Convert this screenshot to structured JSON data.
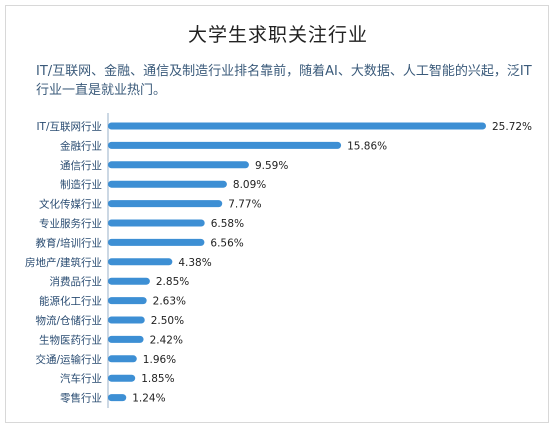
{
  "chart_data": {
    "type": "bar",
    "orientation": "horizontal",
    "title": "大学生求职关注行业",
    "subtitle": "IT/互联网、金融、通信及制造行业排名靠前，随着AI、大数据、人工智能的兴起，泛IT行业一直是就业热门。",
    "categories": [
      "IT/互联网行业",
      "金融行业",
      "通信行业",
      "制造行业",
      "文化传媒行业",
      "专业服务行业",
      "教育/培训行业",
      "房地产/建筑行业",
      "消费品行业",
      "能源化工行业",
      "物流/仓储行业",
      "生物医药行业",
      "交通/运输行业",
      "汽车行业",
      "零售行业"
    ],
    "values": [
      25.72,
      15.86,
      9.59,
      8.09,
      7.77,
      6.58,
      6.56,
      4.38,
      2.85,
      2.63,
      2.5,
      2.42,
      1.96,
      1.85,
      1.24
    ],
    "value_labels": [
      "25.72%",
      "15.86%",
      "9.59%",
      "8.09%",
      "7.77%",
      "6.58%",
      "6.56%",
      "4.38%",
      "2.85%",
      "2.63%",
      "2.50%",
      "2.42%",
      "1.96%",
      "1.85%",
      "1.24%"
    ],
    "bar_color": "#3d8fd4",
    "grid": false,
    "legend": "none"
  }
}
